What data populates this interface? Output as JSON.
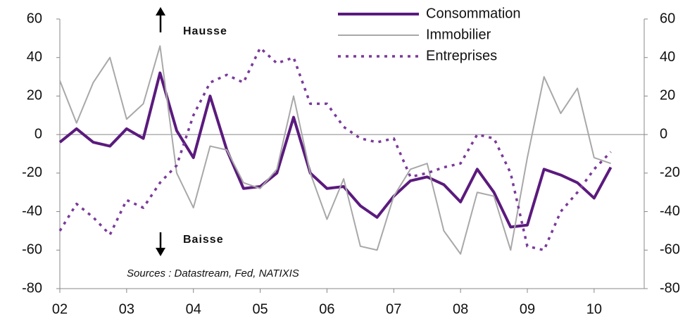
{
  "chart_data": {
    "type": "line",
    "x": [
      2002,
      2002.25,
      2002.5,
      2002.75,
      2003,
      2003.25,
      2003.5,
      2003.75,
      2004,
      2004.25,
      2004.5,
      2004.75,
      2005,
      2005.25,
      2005.5,
      2005.75,
      2006,
      2006.25,
      2006.5,
      2006.75,
      2007,
      2007.25,
      2007.5,
      2007.75,
      2008,
      2008.25,
      2008.5,
      2008.75,
      2009,
      2009.25,
      2009.5,
      2009.75,
      2010,
      2010.25
    ],
    "series": [
      {
        "name": "Consommation",
        "color": "#5b1a7e",
        "values": [
          -4,
          3,
          -4,
          -6,
          3,
          -2,
          32,
          2,
          -12,
          20,
          -8,
          -28,
          -27,
          -20,
          9,
          -20,
          -28,
          -27,
          -37,
          -43,
          -32,
          -24,
          -22,
          -26,
          -35,
          -18,
          -30,
          -48,
          -47,
          -18,
          -21,
          -25,
          -33,
          -17
        ]
      },
      {
        "name": "Immobilier",
        "color": "#a8a8a8",
        "values": [
          28,
          6,
          27,
          40,
          8,
          16,
          46,
          -20,
          -38,
          -6,
          -8,
          -25,
          -28,
          -18,
          20,
          -20,
          -44,
          -23,
          -58,
          -60,
          -32,
          -18,
          -15,
          -50,
          -62,
          -30,
          -32,
          -60,
          -12,
          30,
          11,
          24,
          -12,
          -15
        ]
      },
      {
        "name": "Entreprises",
        "color": "#7a3a9a",
        "dashed": true,
        "values": [
          -50,
          -36,
          -43,
          -52,
          -34,
          -38,
          -25,
          -16,
          10,
          27,
          31,
          27,
          45,
          37,
          40,
          16,
          16,
          4,
          -2,
          -4,
          -2,
          -22,
          -20,
          -17,
          -15,
          0,
          -2,
          -20,
          -58,
          -60,
          -40,
          -30,
          -18,
          -9
        ]
      }
    ],
    "xlim": [
      2002,
      2010.75
    ],
    "xticks": [
      {
        "value": 2002,
        "label": "02"
      },
      {
        "value": 2003,
        "label": "03"
      },
      {
        "value": 2004,
        "label": "04"
      },
      {
        "value": 2005,
        "label": "05"
      },
      {
        "value": 2006,
        "label": "06"
      },
      {
        "value": 2007,
        "label": "07"
      },
      {
        "value": 2008,
        "label": "08"
      },
      {
        "value": 2009,
        "label": "09"
      },
      {
        "value": 2010,
        "label": "10"
      }
    ],
    "ylim": [
      -80,
      60
    ],
    "yticks": [
      -80,
      -60,
      -40,
      -20,
      0,
      20,
      40,
      60
    ],
    "y2lim": [
      -80,
      60
    ],
    "y2ticks": [
      -80,
      -60,
      -40,
      -20,
      0,
      20,
      40,
      60
    ],
    "annotations": [
      "Hausse",
      "Baisse",
      "Sources : Datastream, Fed, NATIXIS"
    ],
    "grid": false
  }
}
